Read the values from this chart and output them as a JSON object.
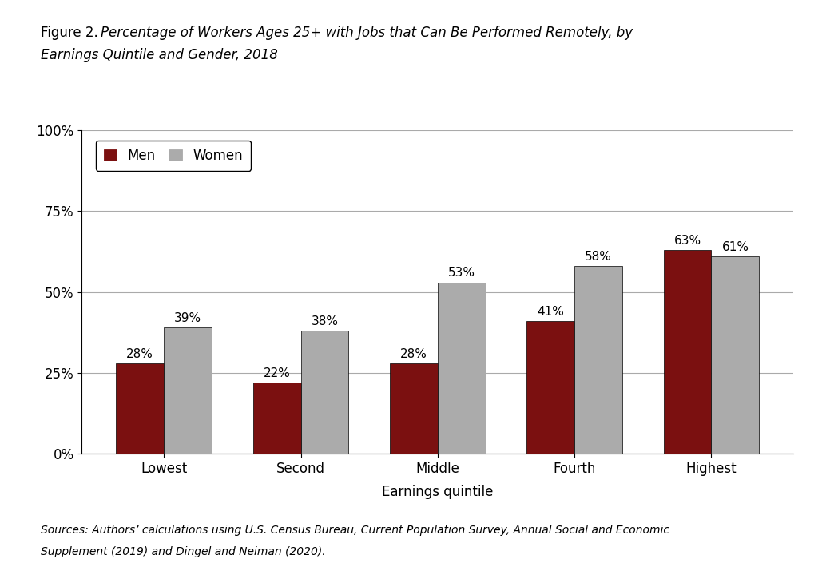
{
  "categories": [
    "Lowest",
    "Second",
    "Middle",
    "Fourth",
    "Highest"
  ],
  "men_values": [
    28,
    22,
    28,
    41,
    63
  ],
  "women_values": [
    39,
    38,
    53,
    58,
    61
  ],
  "men_color": "#7B1010",
  "women_color": "#ABABAB",
  "bar_edge_color": "#000000",
  "bar_edge_width": 0.5,
  "xlabel": "Earnings quintile",
  "yticks": [
    0,
    25,
    50,
    75,
    100
  ],
  "ytick_labels": [
    "0%",
    "25%",
    "50%",
    "75%",
    "100%"
  ],
  "ylim": [
    0,
    100
  ],
  "legend_labels": [
    "Men",
    "Women"
  ],
  "bar_width": 0.35,
  "background_color": "#FFFFFF",
  "grid_color": "#AAAAAA",
  "grid_linewidth": 0.8,
  "title_fontsize": 12,
  "axis_label_fontsize": 12,
  "tick_fontsize": 12,
  "legend_fontsize": 12,
  "bar_label_fontsize": 11,
  "source_fontsize": 10,
  "title_prefix": "Figure 2. ",
  "title_italic_1": "Percentage of Workers Ages 25+ with Jobs that Can Be Performed Remotely, by",
  "title_italic_2": "Earnings Quintile and Gender, 2018"
}
